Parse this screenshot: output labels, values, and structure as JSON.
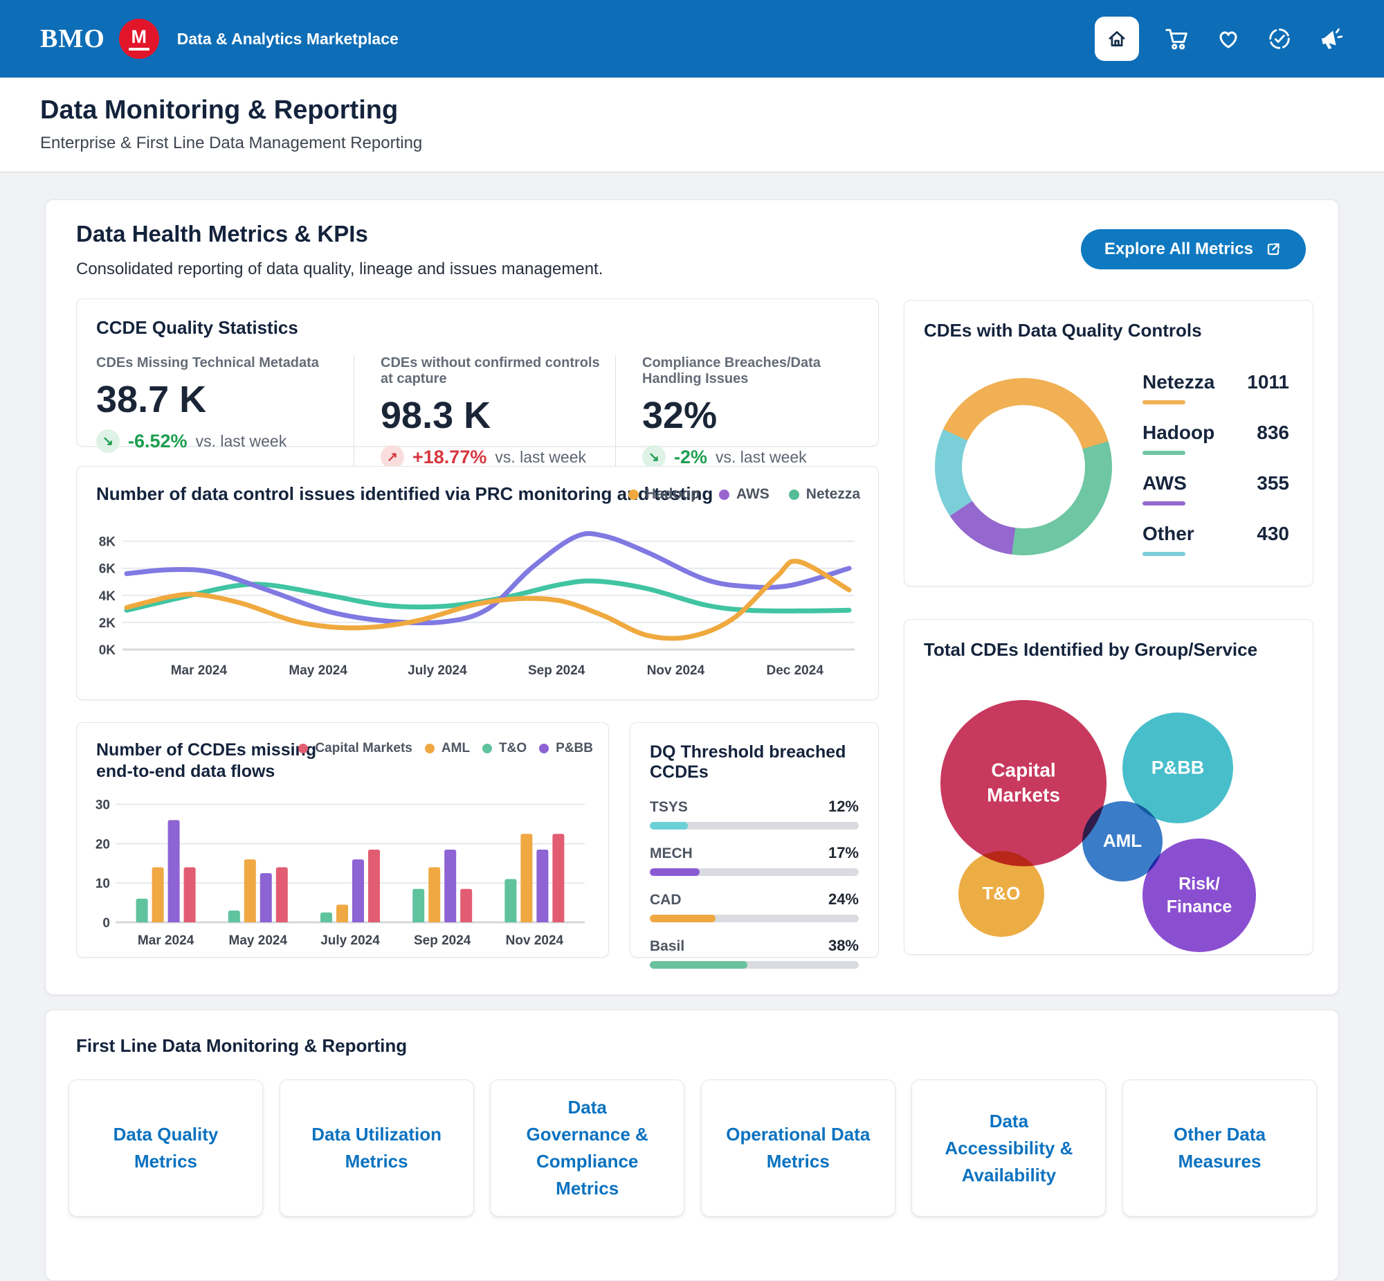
{
  "colors": {
    "header_blue": "#0D6DB7",
    "brand_red": "#E2162A",
    "button_blue": "#0E79C1",
    "positive_green": "#1D9E50",
    "negative_red": "#D7373F",
    "link_blue": "#0B72C0"
  },
  "header": {
    "brand": "BMO",
    "app_title": "Data & Analytics Marketplace",
    "icons": [
      "home",
      "cart",
      "favorites",
      "approvals",
      "announcements"
    ]
  },
  "page": {
    "title": "Data Monitoring & Reporting",
    "subtitle": "Enterprise & First Line Data Management Reporting"
  },
  "metrics_section": {
    "title": "Data Health Metrics & KPIs",
    "subtitle": "Consolidated reporting of data quality, lineage and issues management.",
    "explore_button": {
      "label": "Explore All Metrics",
      "icon": "external-link-icon"
    }
  },
  "kpi_card": {
    "title": "CCDE Quality Statistics",
    "kpis": [
      {
        "label": "CDEs Missing Technical Metadata",
        "value": "38.7 K",
        "delta": "-6.52%",
        "suffix": "vs. last week",
        "arrow": "↘",
        "color": "#1D9E50",
        "bg": "#DFF2E6"
      },
      {
        "label": "CDEs without confirmed controls at capture",
        "value": "98.3 K",
        "delta": "+18.77%",
        "suffix": "vs. last week",
        "arrow": "↗",
        "color": "#D7373F",
        "bg": "#FADEDE"
      },
      {
        "label": "Compliance Breaches/Data Handling Issues",
        "value": "32%",
        "delta": "-2%",
        "suffix": "vs. last week",
        "arrow": "↘",
        "color": "#1D9E50",
        "bg": "#DFF2E6"
      }
    ]
  },
  "chart_data": [
    {
      "id": "prc_issues_line",
      "type": "line",
      "title": "Number of data control issues identified via PRC monitoring and testing",
      "ylim": [
        0,
        8.8
      ],
      "y_unit": "K",
      "grid": true,
      "legend_position": "top-right",
      "y_ticks": [
        "0K",
        "2K",
        "4K",
        "6K",
        "8K"
      ],
      "x_ticks": [
        {
          "pos": 10,
          "label": "Mar 2024"
        },
        {
          "pos": 26.5,
          "label": "May 2024"
        },
        {
          "pos": 43,
          "label": "July 2024"
        },
        {
          "pos": 59.5,
          "label": "Sep 2024"
        },
        {
          "pos": 76,
          "label": "Nov 2024"
        },
        {
          "pos": 92.5,
          "label": "Dec 2024"
        }
      ],
      "legend": [
        {
          "name": "Hadoop",
          "color": "#EFA93F"
        },
        {
          "name": "AWS",
          "color": "#9A64D0"
        },
        {
          "name": "Netezza",
          "color": "#55BD96"
        }
      ],
      "series": [
        {
          "name": "Netezza",
          "color": "#41C4A2",
          "points": [
            [
              0,
              2.9
            ],
            [
              8,
              3.9
            ],
            [
              15,
              4.7
            ],
            [
              20,
              4.75
            ],
            [
              28,
              4.0
            ],
            [
              36,
              3.25
            ],
            [
              44,
              3.2
            ],
            [
              52,
              3.8
            ],
            [
              60,
              4.8
            ],
            [
              65,
              5.05
            ],
            [
              72,
              4.5
            ],
            [
              80,
              3.3
            ],
            [
              86,
              2.9
            ],
            [
              93,
              2.85
            ],
            [
              100,
              2.9
            ]
          ]
        },
        {
          "name": "AWS",
          "color": "#8079E2",
          "points": [
            [
              0,
              5.6
            ],
            [
              6,
              5.9
            ],
            [
              12,
              5.7
            ],
            [
              20,
              4.3
            ],
            [
              28,
              2.8
            ],
            [
              36,
              2.1
            ],
            [
              44,
              2.05
            ],
            [
              50,
              3.0
            ],
            [
              56,
              6.0
            ],
            [
              62,
              8.3
            ],
            [
              66,
              8.4
            ],
            [
              72,
              7.2
            ],
            [
              80,
              5.2
            ],
            [
              86,
              4.65
            ],
            [
              92,
              4.75
            ],
            [
              100,
              6.0
            ]
          ]
        },
        {
          "name": "Hadoop",
          "color": "#EFA93F",
          "points": [
            [
              0,
              3.1
            ],
            [
              6,
              3.9
            ],
            [
              10,
              4.05
            ],
            [
              16,
              3.4
            ],
            [
              24,
              2.0
            ],
            [
              32,
              1.6
            ],
            [
              40,
              2.1
            ],
            [
              48,
              3.3
            ],
            [
              54,
              3.75
            ],
            [
              60,
              3.6
            ],
            [
              66,
              2.5
            ],
            [
              72,
              1.05
            ],
            [
              78,
              0.95
            ],
            [
              84,
              2.3
            ],
            [
              90,
              5.4
            ],
            [
              93,
              6.5
            ],
            [
              100,
              4.4
            ]
          ]
        }
      ]
    },
    {
      "id": "cdes_with_dq_controls",
      "type": "donut",
      "title": "CDEs with Data Quality Controls",
      "start_angle": -65,
      "slices": [
        {
          "label": "Netezza",
          "value": 1011,
          "color": "#F0B053"
        },
        {
          "label": "Hadoop",
          "value": 836,
          "color": "#6EC6A3"
        },
        {
          "label": "AWS",
          "value": 355,
          "color": "#9468CE"
        },
        {
          "label": "Other",
          "value": 430,
          "color": "#7BCFD8"
        }
      ]
    },
    {
      "id": "ccdes_missing_flows",
      "type": "bar",
      "title": "Number of CCDEs missing end-to-end data flows",
      "categories": [
        "Mar 2024",
        "May 2024",
        "July 2024",
        "Sep 2024",
        "Nov 2024"
      ],
      "y_ticks": [
        0,
        10,
        20,
        30
      ],
      "ylim": [
        0,
        31
      ],
      "grid": true,
      "legend_position": "top-right",
      "legend": [
        {
          "name": "Capital Markets",
          "color": "#E25D72"
        },
        {
          "name": "AML",
          "color": "#F0A843"
        },
        {
          "name": "T&O",
          "color": "#5FC39E"
        },
        {
          "name": "P&BB",
          "color": "#8E63D4"
        }
      ],
      "group_order": [
        "T&O",
        "AML",
        "P&BB",
        "Capital Markets"
      ],
      "series": [
        {
          "name": "T&O",
          "color": "#5FC39E",
          "values": [
            6,
            3,
            2.5,
            8.5,
            11
          ]
        },
        {
          "name": "AML",
          "color": "#F0A843",
          "values": [
            14,
            16,
            4.5,
            14,
            22.5
          ]
        },
        {
          "name": "P&BB",
          "color": "#8E63D4",
          "values": [
            26,
            12.5,
            16,
            18.5,
            18.5
          ]
        },
        {
          "name": "Capital Markets",
          "color": "#E25D72",
          "values": [
            14,
            14,
            18.5,
            8.5,
            22.5
          ]
        }
      ]
    },
    {
      "id": "dq_threshold_breached",
      "type": "progress",
      "title": "DQ Threshold breached CCDEs",
      "unit": "%",
      "items": [
        {
          "label": "TSYS",
          "value": 12,
          "display": "12%",
          "color": "#6BD0D8"
        },
        {
          "label": "MECH",
          "value": 17,
          "display": "17%",
          "color": "#8B5BD4"
        },
        {
          "label": "CAD",
          "value": 24,
          "display": "24%",
          "color": "#F0A843"
        },
        {
          "label": "Basil",
          "value": 38,
          "display": "38%",
          "color": "#68C29C"
        }
      ]
    },
    {
      "id": "total_cdes_by_group",
      "type": "bubble",
      "title": "Total CDEs Identified by Group/Service",
      "bubbles": [
        {
          "label": "Capital Markets",
          "lines": [
            "Capital",
            "Markets"
          ],
          "color": "#C8395E",
          "cx": 144,
          "cy": 172,
          "r": 120,
          "font": 28
        },
        {
          "label": "P&BB",
          "lines": [
            "P&BB"
          ],
          "color": "#48BECB",
          "cx": 367,
          "cy": 150,
          "r": 80,
          "font": 27
        },
        {
          "label": "AML",
          "lines": [
            "AML"
          ],
          "color": "#3B7CC9",
          "cx": 287,
          "cy": 256,
          "r": 58,
          "font": 26
        },
        {
          "label": "T&O",
          "lines": [
            "T&O"
          ],
          "color": "#ECAD44",
          "cx": 112,
          "cy": 332,
          "r": 62,
          "font": 26
        },
        {
          "label": "Risk/Finance",
          "lines": [
            "Risk/",
            "Finance"
          ],
          "color": "#8A4ED0",
          "cx": 398,
          "cy": 334,
          "r": 82,
          "font": 25
        }
      ]
    }
  ],
  "first_line": {
    "title": "First Line Data Monitoring & Reporting",
    "cards": [
      "Data Quality Metrics",
      "Data Utilization Metrics",
      "Data Governance & Compliance Metrics",
      "Operational Data Metrics",
      "Data Accessibility & Availability",
      "Other Data Measures"
    ]
  }
}
